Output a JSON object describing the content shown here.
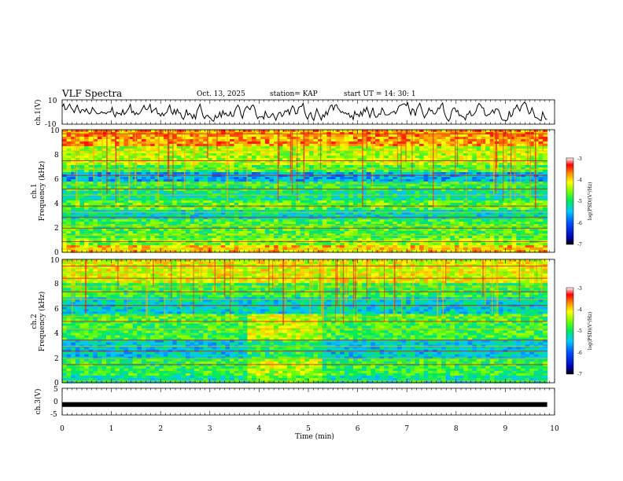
{
  "header": {
    "title": "VLF Spectra",
    "date": "Oct. 13, 2025",
    "station": "station= KAP",
    "start": "start  UT  =   14: 30: 1"
  },
  "chart_data": {
    "type": "heatmap",
    "x": {
      "label": "Time  (min)",
      "range": [
        0,
        10
      ],
      "ticks": [
        "0",
        "1",
        "2",
        "3",
        "4",
        "5",
        "6",
        "7",
        "8",
        "9",
        "10"
      ],
      "data_end_min": 9.85
    },
    "panels": [
      {
        "id": "ch1-waveform",
        "type": "line",
        "ylabel": "ch.1(V)",
        "ylim": [
          -10,
          10
        ],
        "yticks": [
          "10",
          "-10"
        ]
      },
      {
        "id": "ch1-spectrogram",
        "type": "heatmap",
        "ylabel": "ch.1\nFrequency (kHz)",
        "ylim": [
          0,
          10
        ],
        "yticks": [
          "0",
          "2",
          "4",
          "6",
          "8",
          "10"
        ],
        "band_lines_khz": [
          0.3,
          0.9,
          1.4,
          2.0,
          2.2,
          2.9,
          3.3,
          3.8,
          4.7,
          5.2,
          5.6,
          6.3,
          6.8,
          7.5,
          8.3,
          9.7
        ],
        "colorbar": {
          "label": "log(PSD)(V²/Hz)",
          "range": [
            -7,
            -3
          ],
          "ticks": [
            "-3",
            "-4",
            "-5",
            "-6",
            "-7"
          ]
        }
      },
      {
        "id": "ch2-spectrogram",
        "type": "heatmap",
        "ylabel": "ch.2\nFrequency (kHz)",
        "ylim": [
          0,
          10
        ],
        "yticks": [
          "0",
          "2",
          "4",
          "6",
          "8",
          "10"
        ],
        "band_lines_khz": [
          0.2,
          1.5,
          2.0,
          2.6,
          3.0,
          3.5,
          4.4,
          5.0,
          5.4,
          6.3,
          6.8,
          7.4,
          7.8,
          8.5,
          9.0,
          9.5
        ],
        "colorbar": {
          "label": "log(PSD)(V²/Hz)",
          "range": [
            -7,
            -3
          ],
          "ticks": [
            "-3",
            "-4",
            "-5",
            "-6",
            "-7"
          ]
        }
      },
      {
        "id": "ch3-waveform",
        "type": "line",
        "ylabel": "ch.3(V)",
        "ylim": [
          -5,
          5
        ],
        "yticks": [
          "5",
          "0",
          "-5"
        ],
        "constant_level_v": -1.1
      }
    ]
  }
}
